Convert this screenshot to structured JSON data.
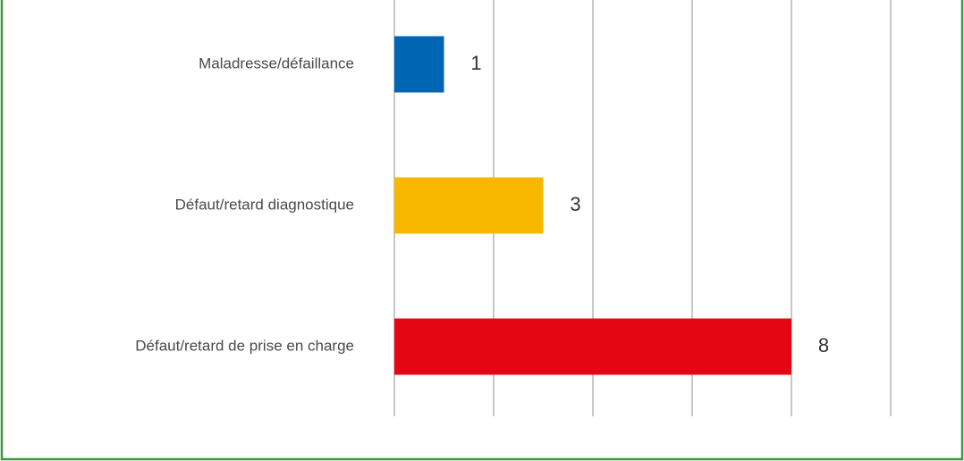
{
  "chart_data": {
    "type": "hbar",
    "categories": [
      "Maladresse/défaillance",
      "Défaut/retard diagnostique",
      "Défaut/retard de prise en charge"
    ],
    "values": [
      1,
      3,
      8
    ],
    "colors": [
      "#0066b3",
      "#f9b800",
      "#e30613"
    ],
    "xlim": [
      0,
      10
    ],
    "xticks": [
      0,
      2,
      4,
      6,
      8,
      10
    ],
    "grid": true
  }
}
